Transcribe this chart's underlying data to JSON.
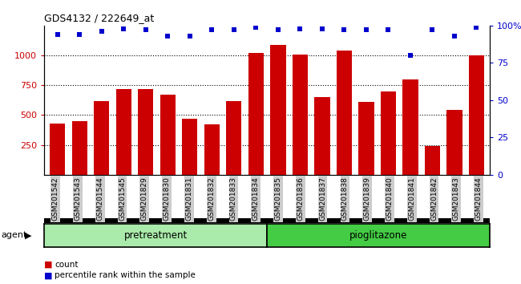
{
  "title": "GDS4132 / 222649_at",
  "categories": [
    "GSM201542",
    "GSM201543",
    "GSM201544",
    "GSM201545",
    "GSM201829",
    "GSM201830",
    "GSM201831",
    "GSM201832",
    "GSM201833",
    "GSM201834",
    "GSM201835",
    "GSM201836",
    "GSM201837",
    "GSM201838",
    "GSM201839",
    "GSM201840",
    "GSM201841",
    "GSM201842",
    "GSM201843",
    "GSM201844"
  ],
  "counts": [
    430,
    450,
    620,
    720,
    720,
    670,
    470,
    420,
    620,
    1020,
    1090,
    1010,
    650,
    1040,
    610,
    700,
    800,
    240,
    540,
    1000
  ],
  "percentiles": [
    94,
    94,
    96,
    98,
    97,
    93,
    93,
    97,
    97,
    99,
    97,
    98,
    98,
    97,
    97,
    97,
    80,
    97,
    93,
    99
  ],
  "pretreatment_count": 10,
  "pioglitazone_count": 10,
  "bar_color": "#cc0000",
  "dot_color": "#0000cc",
  "ylim_left": [
    0,
    1250
  ],
  "ylim_right": [
    0,
    100
  ],
  "yticks_left": [
    250,
    500,
    750,
    1000
  ],
  "yticks_right": [
    0,
    25,
    50,
    75,
    100
  ],
  "background_color": "#ffffff",
  "tick_bg": "#cccccc",
  "pretreatment_color": "#aaeaaa",
  "pioglitazone_color": "#44cc44",
  "agent_label": "agent",
  "legend_count_label": "count",
  "legend_pct_label": "percentile rank within the sample"
}
